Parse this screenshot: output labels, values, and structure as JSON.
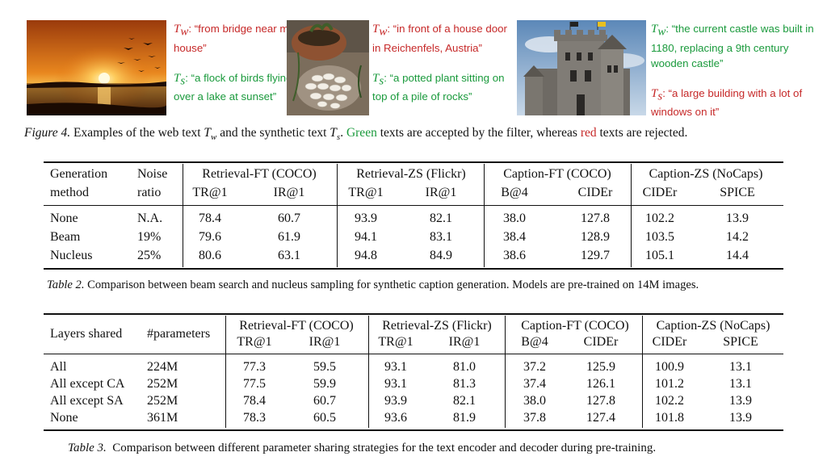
{
  "figure4": {
    "examples": [
      {
        "image": "sunset-lake-birds-photo",
        "colors": {
          "sky_top": "#b84a10",
          "sky_mid": "#f0a030",
          "sun": "#fff2b0",
          "water": "#2a1408"
        },
        "tw_label": "T",
        "tw_sub": "w",
        "tw_text": ": “from bridge near my house”",
        "tw_status": "rejected",
        "ts_label": "T",
        "ts_sub": "s",
        "ts_text": ": “a flock of birds flying over a lake at sunset”",
        "ts_status": "accepted"
      },
      {
        "image": "potted-plant-rocks-photo",
        "colors": {
          "bg": "#8a7a68",
          "pot": "#9a5a3a",
          "stones": "#e8e4dc"
        },
        "tw_label": "T",
        "tw_sub": "w",
        "tw_text": ": “in front of a house door in Reichenfels, Austria”",
        "tw_status": "rejected",
        "ts_label": "T",
        "ts_sub": "s",
        "ts_text": ": “a potted plant sitting on top of a pile of rocks”",
        "ts_status": "accepted"
      },
      {
        "image": "castle-photo",
        "colors": {
          "sky": "#7fa6c8",
          "stone": "#7d7a74"
        },
        "tw_label": "T",
        "tw_sub": "w",
        "tw_text": ": “the current castle was built in 1180, replacing a 9th century wooden castle”",
        "tw_status": "accepted",
        "ts_label": "T",
        "ts_sub": "s",
        "ts_text": ": “a large building with a lot of windows on it”",
        "ts_status": "rejected"
      }
    ],
    "caption": {
      "label": "Figure 4.",
      "part1": " Examples of the web text ",
      "tw": "T",
      "tw_sub": "w",
      "part2": " and the synthetic text ",
      "ts": "T",
      "ts_sub": "s",
      "part3": ". ",
      "green_word": "Green",
      "part4": " texts are accepted by the filter, whereas ",
      "red_word": "red",
      "part5": " texts are rejected."
    },
    "accent_colors": {
      "accepted": "#1a9a3c",
      "rejected": "#c62828"
    }
  },
  "table2": {
    "header_row1": [
      "Generation",
      "Noise",
      "Retrieval-FT (COCO)",
      "Retrieval-ZS (Flickr)",
      "Caption-FT (COCO)",
      "Caption-ZS (NoCaps)"
    ],
    "header_row2": [
      "method",
      "ratio",
      "TR@1",
      "IR@1",
      "TR@1",
      "IR@1",
      "B@4",
      "CIDEr",
      "CIDEr",
      "SPICE"
    ],
    "rows": [
      [
        "None",
        "N.A.",
        "78.4",
        "60.7",
        "93.9",
        "82.1",
        "38.0",
        "127.8",
        "102.2",
        "13.9"
      ],
      [
        "Beam",
        "19%",
        "79.6",
        "61.9",
        "94.1",
        "83.1",
        "38.4",
        "128.9",
        "103.5",
        "14.2"
      ],
      [
        "Nucleus",
        "25%",
        "80.6",
        "63.1",
        "94.8",
        "84.9",
        "38.6",
        "129.7",
        "105.1",
        "14.4"
      ]
    ],
    "caption_label": "Table 2.",
    "caption_text": " Comparison between beam search and nucleus sampling for synthetic caption generation. Models are pre-trained on 14M images."
  },
  "table3": {
    "header_row1": [
      "Layers shared",
      "#parameters",
      "Retrieval-FT (COCO)",
      "Retrieval-ZS (Flickr)",
      "Caption-FT (COCO)",
      "Caption-ZS (NoCaps)"
    ],
    "header_row2": [
      "TR@1",
      "IR@1",
      "TR@1",
      "IR@1",
      "B@4",
      "CIDEr",
      "CIDEr",
      "SPICE"
    ],
    "rows": [
      [
        "All",
        "224M",
        "77.3",
        "59.5",
        "93.1",
        "81.0",
        "37.2",
        "125.9",
        "100.9",
        "13.1"
      ],
      [
        "All except CA",
        "252M",
        "77.5",
        "59.9",
        "93.1",
        "81.3",
        "37.4",
        "126.1",
        "101.2",
        "13.1"
      ],
      [
        "All except SA",
        "252M",
        "78.4",
        "60.7",
        "93.9",
        "82.1",
        "38.0",
        "127.8",
        "102.2",
        "13.9"
      ],
      [
        "None",
        "361M",
        "78.3",
        "60.5",
        "93.6",
        "81.9",
        "37.8",
        "127.4",
        "101.8",
        "13.9"
      ]
    ],
    "caption_label": "Table 3.",
    "caption_text": "  Comparison between different parameter sharing strategies for the text encoder and decoder during pre-training."
  }
}
